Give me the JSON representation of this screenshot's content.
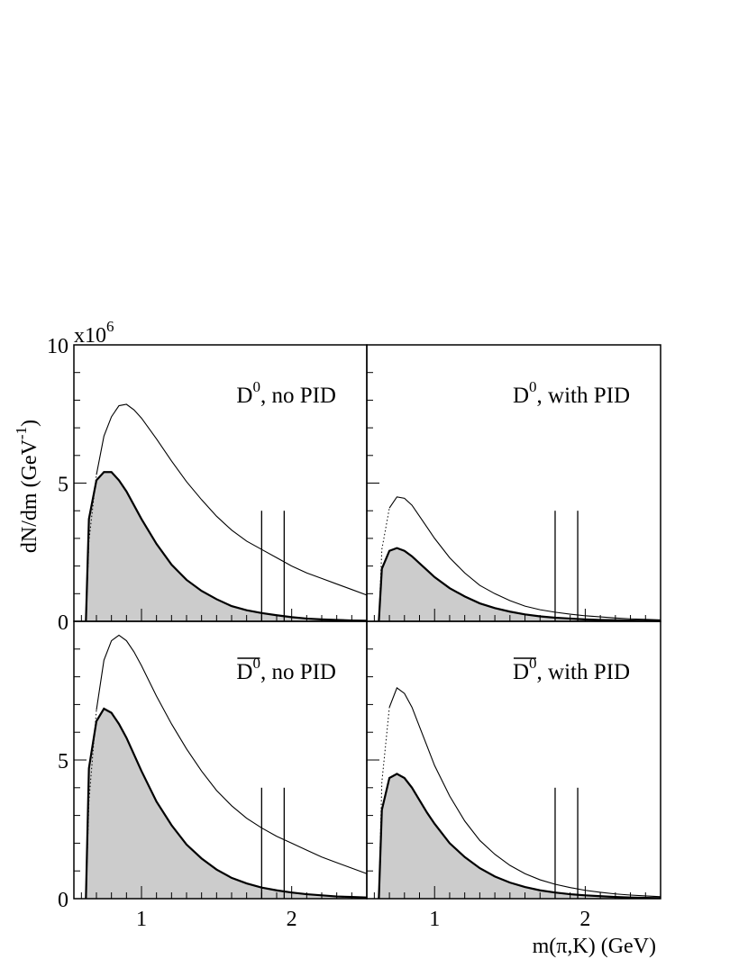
{
  "figure": {
    "y_multiplier": "x10",
    "y_multiplier_exp": "6",
    "ylabel": "dN/dm (GeV",
    "ylabel_exp": "-1",
    "ylabel_close": ")",
    "xlabel": "m(π,K) (GeV)",
    "colors": {
      "fill": "#cccccc",
      "line": "#000000"
    }
  },
  "chart_data": [
    {
      "type": "area",
      "label_particle": "D",
      "label_bar": false,
      "label_sup": "0",
      "label_text": ", no PID",
      "xlim": [
        0.55,
        2.5
      ],
      "ylim": [
        0,
        10
      ],
      "y_unit": "x10^6",
      "x_ticks": [
        "1",
        "2"
      ],
      "y_ticks": [
        "0",
        "5",
        "10"
      ],
      "vlines": [
        1.8,
        1.95
      ],
      "vline_top": 4.0,
      "series": [
        {
          "role": "outline",
          "x": [
            0.63,
            0.65,
            0.7,
            0.75,
            0.8,
            0.85,
            0.9,
            0.95,
            1.0,
            1.1,
            1.2,
            1.3,
            1.4,
            1.5,
            1.6,
            1.7,
            1.8,
            1.9,
            2.0,
            2.1,
            2.2,
            2.3,
            2.4,
            2.5
          ],
          "y": [
            0,
            2.9,
            5.3,
            6.7,
            7.4,
            7.8,
            7.85,
            7.65,
            7.35,
            6.6,
            5.8,
            5.05,
            4.4,
            3.8,
            3.3,
            2.9,
            2.6,
            2.3,
            2.0,
            1.75,
            1.55,
            1.35,
            1.15,
            0.95
          ]
        },
        {
          "role": "filled",
          "x": [
            0.63,
            0.65,
            0.7,
            0.75,
            0.8,
            0.85,
            0.9,
            0.95,
            1.0,
            1.1,
            1.2,
            1.3,
            1.4,
            1.5,
            1.6,
            1.7,
            1.8,
            1.9,
            2.0,
            2.1,
            2.2,
            2.3,
            2.4,
            2.5
          ],
          "y": [
            0,
            3.7,
            5.1,
            5.4,
            5.4,
            5.1,
            4.7,
            4.2,
            3.7,
            2.8,
            2.05,
            1.5,
            1.1,
            0.8,
            0.55,
            0.4,
            0.3,
            0.22,
            0.15,
            0.1,
            0.07,
            0.05,
            0.03,
            0.02
          ]
        }
      ]
    },
    {
      "type": "area",
      "label_particle": "D",
      "label_bar": false,
      "label_sup": "0",
      "label_text": ", with PID",
      "xlim": [
        0.55,
        2.5
      ],
      "ylim": [
        0,
        10
      ],
      "y_unit": "x10^6",
      "x_ticks": [
        "1",
        "2"
      ],
      "y_ticks": [],
      "vlines": [
        1.8,
        1.95
      ],
      "vline_top": 4.0,
      "series": [
        {
          "role": "outline",
          "x": [
            0.63,
            0.65,
            0.7,
            0.75,
            0.8,
            0.85,
            0.9,
            0.95,
            1.0,
            1.1,
            1.2,
            1.3,
            1.4,
            1.5,
            1.6,
            1.7,
            1.8,
            1.9,
            2.0,
            2.1,
            2.2,
            2.3,
            2.4,
            2.5
          ],
          "y": [
            0,
            2.6,
            4.1,
            4.5,
            4.45,
            4.2,
            3.8,
            3.4,
            3.0,
            2.3,
            1.75,
            1.3,
            1.0,
            0.75,
            0.55,
            0.42,
            0.33,
            0.26,
            0.2,
            0.16,
            0.12,
            0.09,
            0.07,
            0.05
          ]
        },
        {
          "role": "filled",
          "x": [
            0.63,
            0.65,
            0.7,
            0.75,
            0.8,
            0.85,
            0.9,
            0.95,
            1.0,
            1.1,
            1.2,
            1.3,
            1.4,
            1.5,
            1.6,
            1.7,
            1.8,
            1.9,
            2.0,
            2.1,
            2.2,
            2.3,
            2.4,
            2.5
          ],
          "y": [
            0,
            1.9,
            2.55,
            2.65,
            2.55,
            2.35,
            2.1,
            1.85,
            1.6,
            1.2,
            0.9,
            0.65,
            0.48,
            0.35,
            0.25,
            0.18,
            0.13,
            0.1,
            0.07,
            0.05,
            0.04,
            0.03,
            0.02,
            0.01
          ]
        }
      ]
    },
    {
      "type": "area",
      "label_particle": "D",
      "label_bar": true,
      "label_sup": "0",
      "label_text": ", no PID",
      "xlim": [
        0.55,
        2.5
      ],
      "ylim": [
        0,
        10
      ],
      "y_unit": "x10^6",
      "x_ticks": [
        "1",
        "2"
      ],
      "y_ticks": [
        "0",
        "5"
      ],
      "vlines": [
        1.8,
        1.95
      ],
      "vline_top": 4.0,
      "series": [
        {
          "role": "outline",
          "x": [
            0.63,
            0.65,
            0.7,
            0.75,
            0.8,
            0.85,
            0.9,
            0.95,
            1.0,
            1.1,
            1.2,
            1.3,
            1.4,
            1.5,
            1.6,
            1.7,
            1.8,
            1.9,
            2.0,
            2.1,
            2.2,
            2.3,
            2.4,
            2.5
          ],
          "y": [
            0,
            3.5,
            6.8,
            8.6,
            9.3,
            9.5,
            9.3,
            8.9,
            8.4,
            7.3,
            6.3,
            5.4,
            4.6,
            3.9,
            3.35,
            2.9,
            2.55,
            2.25,
            2.0,
            1.75,
            1.5,
            1.3,
            1.1,
            0.9
          ]
        },
        {
          "role": "filled",
          "x": [
            0.63,
            0.65,
            0.7,
            0.75,
            0.8,
            0.85,
            0.9,
            0.95,
            1.0,
            1.1,
            1.2,
            1.3,
            1.4,
            1.5,
            1.6,
            1.7,
            1.8,
            1.9,
            2.0,
            2.1,
            2.2,
            2.3,
            2.4,
            2.5
          ],
          "y": [
            0,
            4.7,
            6.4,
            6.85,
            6.7,
            6.3,
            5.8,
            5.2,
            4.6,
            3.5,
            2.65,
            1.95,
            1.45,
            1.05,
            0.75,
            0.55,
            0.4,
            0.3,
            0.22,
            0.16,
            0.12,
            0.08,
            0.06,
            0.04
          ]
        }
      ]
    },
    {
      "type": "area",
      "label_particle": "D",
      "label_bar": true,
      "label_sup": "0",
      "label_text": ", with PID",
      "xlim": [
        0.55,
        2.5
      ],
      "ylim": [
        0,
        10
      ],
      "y_unit": "x10^6",
      "x_ticks": [
        "1",
        "2"
      ],
      "y_ticks": [],
      "vlines": [
        1.8,
        1.95
      ],
      "vline_top": 4.0,
      "series": [
        {
          "role": "outline",
          "x": [
            0.63,
            0.65,
            0.7,
            0.75,
            0.8,
            0.85,
            0.9,
            0.95,
            1.0,
            1.1,
            1.2,
            1.3,
            1.4,
            1.5,
            1.6,
            1.7,
            1.8,
            1.9,
            2.0,
            2.1,
            2.2,
            2.3,
            2.4,
            2.5
          ],
          "y": [
            0,
            4.2,
            6.9,
            7.6,
            7.4,
            6.9,
            6.2,
            5.5,
            4.8,
            3.7,
            2.8,
            2.1,
            1.6,
            1.2,
            0.9,
            0.68,
            0.52,
            0.4,
            0.3,
            0.23,
            0.17,
            0.13,
            0.1,
            0.07
          ]
        },
        {
          "role": "filled",
          "x": [
            0.63,
            0.65,
            0.7,
            0.75,
            0.8,
            0.85,
            0.9,
            0.95,
            1.0,
            1.1,
            1.2,
            1.3,
            1.4,
            1.5,
            1.6,
            1.7,
            1.8,
            1.9,
            2.0,
            2.1,
            2.2,
            2.3,
            2.4,
            2.5
          ],
          "y": [
            0,
            3.2,
            4.35,
            4.5,
            4.35,
            4.0,
            3.55,
            3.1,
            2.7,
            2.0,
            1.5,
            1.1,
            0.8,
            0.58,
            0.42,
            0.3,
            0.22,
            0.16,
            0.12,
            0.09,
            0.06,
            0.04,
            0.03,
            0.02
          ]
        }
      ]
    }
  ]
}
